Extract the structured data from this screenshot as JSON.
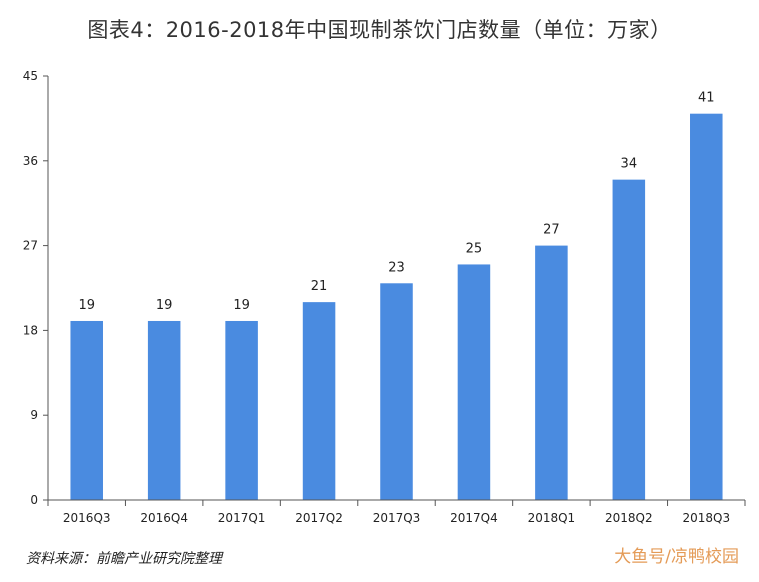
{
  "title": "图表4：2016-2018年中国现制茶饮门店数量（单位：万家）",
  "source": "资料来源：前瞻产业研究院整理",
  "watermark": "大鱼号/凉鸭校园",
  "colors": {
    "bar": "#4a8be0",
    "axis": "#555555"
  },
  "chart_data": {
    "type": "bar",
    "categories": [
      "2016Q3",
      "2016Q4",
      "2017Q1",
      "2017Q2",
      "2017Q3",
      "2017Q4",
      "2018Q1",
      "2018Q2",
      "2018Q3"
    ],
    "values": [
      19,
      19,
      19,
      21,
      23,
      25,
      27,
      34,
      41
    ],
    "data_labels": [
      "19",
      "19",
      "19",
      "21",
      "23",
      "25",
      "27",
      "34",
      "41"
    ],
    "yticks": [
      0,
      9,
      18,
      27,
      36,
      45
    ],
    "ylim": [
      0,
      45
    ],
    "grid": false,
    "legend": "none"
  }
}
